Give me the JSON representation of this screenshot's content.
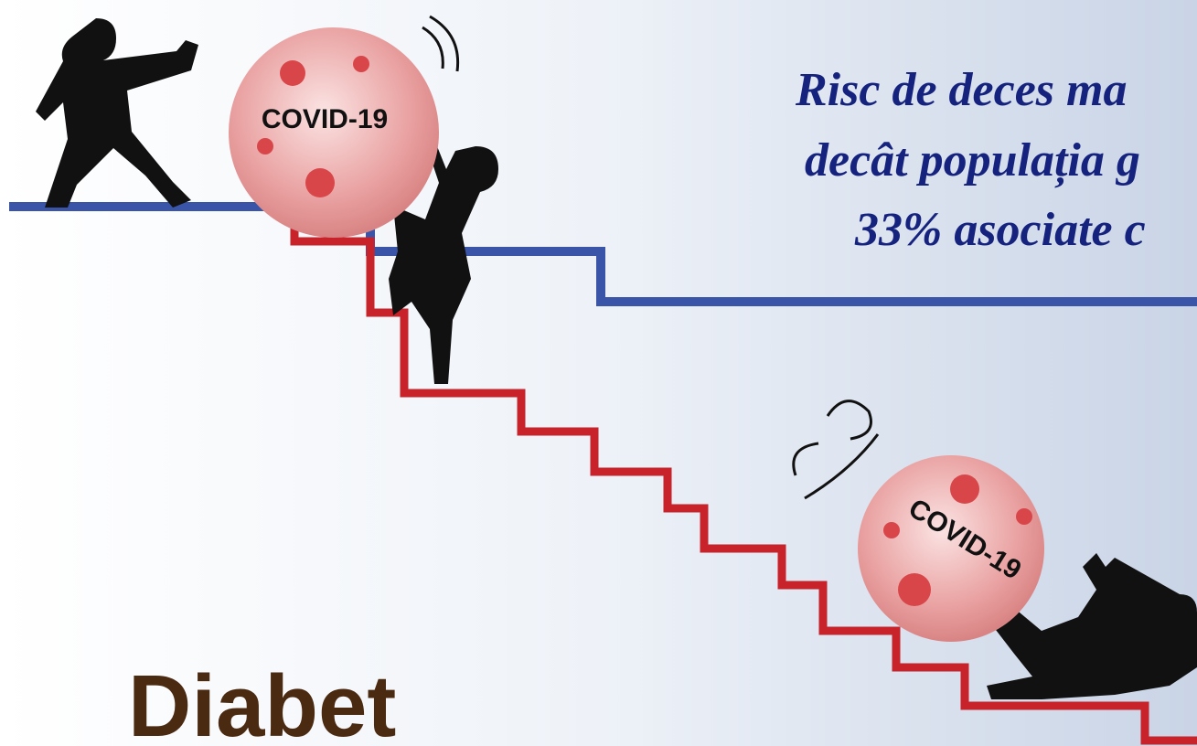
{
  "illustration": {
    "caption_lines": [
      "Risc de deces ma",
      "decât populația g",
      "33% asociate c"
    ],
    "ball_labels": [
      "COVID-19",
      "COVID-19"
    ],
    "title": "Diabet"
  }
}
